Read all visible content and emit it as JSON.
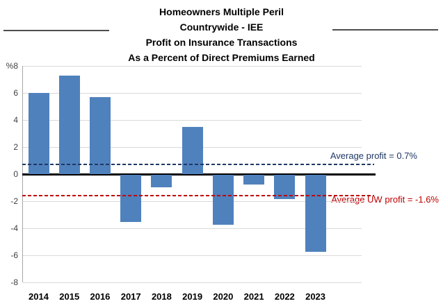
{
  "title": {
    "lines": [
      "Homeowners Multiple Peril",
      "Countrywide - IEE",
      "Profit on Insurance Transactions",
      "As a Percent of Direct Premiums Earned"
    ]
  },
  "chart_data": {
    "type": "bar",
    "title": "Homeowners Multiple Peril, Countrywide - IEE, Profit on Insurance Transactions, As a Percent of Direct Premiums Earned",
    "categories": [
      "2014",
      "2015",
      "2016",
      "2017",
      "2018",
      "2019",
      "2020",
      "2021",
      "2022",
      "2023"
    ],
    "values": [
      6.0,
      7.3,
      5.7,
      -3.5,
      -0.9,
      3.5,
      -3.7,
      -0.7,
      -1.8,
      -5.7
    ],
    "xlabel": "",
    "ylabel": "%",
    "ylim": [
      -8,
      8
    ],
    "grid": true,
    "legend": "none",
    "yticks": [
      {
        "label": "%8",
        "v": 8
      },
      {
        "label": "6",
        "v": 6
      },
      {
        "label": "4",
        "v": 4
      },
      {
        "label": "2",
        "v": 2
      },
      {
        "label": "0",
        "v": 0
      },
      {
        "label": "-2",
        "v": -2
      },
      {
        "label": "-4",
        "v": -4
      },
      {
        "label": "-6",
        "v": -6
      },
      {
        "label": "-8",
        "v": -8
      }
    ],
    "bar_color": "#4f81bd",
    "avg_lines": [
      {
        "label": "Average profit = 0.7%",
        "value": 0.7,
        "color": "#1f3864"
      },
      {
        "label": "Average UW profit = -1.6%",
        "value": -1.6,
        "color": "#c00000"
      }
    ]
  }
}
